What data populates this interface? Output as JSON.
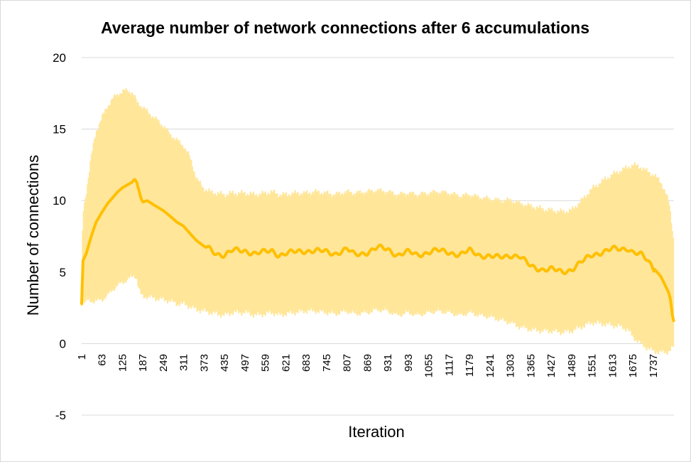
{
  "chart_data": {
    "type": "area",
    "title": "Average number of network connections after 6 accumulations",
    "xlabel": "Iteration",
    "ylabel": "Number of connections",
    "ylim": [
      -5,
      20
    ],
    "yticks": [
      -5,
      0,
      5,
      10,
      15,
      20
    ],
    "xlim": [
      1,
      1800
    ],
    "xticks": [
      1,
      63,
      125,
      187,
      249,
      311,
      373,
      435,
      497,
      559,
      621,
      683,
      745,
      807,
      869,
      931,
      993,
      1055,
      1117,
      1179,
      1241,
      1303,
      1365,
      1427,
      1489,
      1551,
      1613,
      1675,
      1737
    ],
    "grid": "horizontal",
    "legend": "none",
    "colors": {
      "mean_line": "#FFC000",
      "error_band": "#FFE699",
      "grid": "#D9D9D9"
    },
    "series": [
      {
        "role": "mean",
        "x": [
          1,
          5,
          15,
          30,
          45,
          63,
          80,
          95,
          110,
          125,
          140,
          155,
          162,
          168,
          175,
          182,
          187,
          200,
          220,
          249,
          270,
          290,
          311,
          330,
          350,
          373,
          390,
          410,
          435,
          460,
          497,
          530,
          559,
          580,
          600,
          621,
          650,
          683,
          710,
          745,
          770,
          807,
          830,
          869,
          900,
          931,
          960,
          993,
          1020,
          1055,
          1080,
          1117,
          1150,
          1179,
          1210,
          1241,
          1270,
          1303,
          1330,
          1365,
          1400,
          1427,
          1460,
          1489,
          1520,
          1551,
          1580,
          1613,
          1640,
          1660,
          1675,
          1700,
          1720,
          1737,
          1760,
          1775,
          1785,
          1790,
          1795,
          1800
        ],
        "y": [
          2.8,
          5.8,
          6.3,
          7.5,
          8.5,
          9.2,
          9.8,
          10.2,
          10.6,
          10.9,
          11.1,
          11.3,
          11.5,
          11.3,
          10.7,
          10.1,
          9.9,
          10.0,
          9.7,
          9.3,
          8.9,
          8.5,
          8.2,
          7.7,
          7.2,
          6.8,
          6.6,
          6.3,
          6.2,
          6.5,
          6.5,
          6.3,
          6.4,
          6.5,
          6.2,
          6.3,
          6.4,
          6.5,
          6.5,
          6.4,
          6.3,
          6.6,
          6.2,
          6.4,
          6.7,
          6.6,
          6.2,
          6.4,
          6.2,
          6.4,
          6.5,
          6.4,
          6.2,
          6.5,
          6.2,
          6.1,
          6.0,
          6.2,
          6.1,
          5.4,
          5.2,
          5.2,
          5.0,
          5.2,
          5.7,
          6.2,
          6.4,
          6.6,
          6.6,
          6.7,
          6.4,
          6.2,
          5.8,
          5.3,
          4.7,
          4.0,
          3.5,
          3.0,
          2.0,
          1.5
        ],
        "upper": [
          4.0,
          9.0,
          10.5,
          13.0,
          14.8,
          15.8,
          16.6,
          17.1,
          17.4,
          17.6,
          17.7,
          17.5,
          17.2,
          16.9,
          16.7,
          16.6,
          16.5,
          16.2,
          15.8,
          15.2,
          14.6,
          14.2,
          13.8,
          13.0,
          11.5,
          10.8,
          10.6,
          10.5,
          10.4,
          10.5,
          10.5,
          10.4,
          10.5,
          10.6,
          10.4,
          10.4,
          10.5,
          10.5,
          10.6,
          10.5,
          10.4,
          10.6,
          10.5,
          10.6,
          10.7,
          10.6,
          10.4,
          10.5,
          10.4,
          10.5,
          10.6,
          10.5,
          10.3,
          10.4,
          10.2,
          10.1,
          10.0,
          10.0,
          9.8,
          9.6,
          9.4,
          9.3,
          9.2,
          9.3,
          10.0,
          10.8,
          11.3,
          11.8,
          12.1,
          12.3,
          12.5,
          12.3,
          12.0,
          11.8,
          11.3,
          10.5,
          9.8,
          9.0,
          8.0,
          7.0
        ],
        "lower": [
          2.8,
          2.9,
          3.0,
          3.0,
          3.0,
          3.1,
          3.4,
          3.8,
          4.1,
          4.3,
          4.5,
          4.7,
          4.8,
          4.6,
          3.8,
          3.4,
          3.3,
          3.3,
          3.2,
          3.1,
          3.0,
          2.8,
          2.8,
          2.6,
          2.4,
          2.3,
          2.2,
          2.1,
          2.0,
          2.2,
          2.2,
          2.0,
          2.1,
          2.2,
          2.0,
          2.1,
          2.2,
          2.3,
          2.3,
          2.2,
          2.1,
          2.3,
          2.1,
          2.2,
          2.4,
          2.3,
          2.0,
          2.2,
          2.0,
          2.2,
          2.3,
          2.2,
          2.0,
          2.2,
          2.0,
          1.9,
          1.7,
          1.5,
          1.2,
          1.0,
          0.9,
          0.9,
          0.8,
          0.9,
          1.2,
          1.5,
          1.4,
          1.3,
          1.2,
          1.0,
          0.5,
          0.0,
          -0.3,
          -0.5,
          -0.6,
          -0.6,
          -0.5,
          -0.4,
          -0.3,
          -0.2
        ]
      }
    ]
  }
}
